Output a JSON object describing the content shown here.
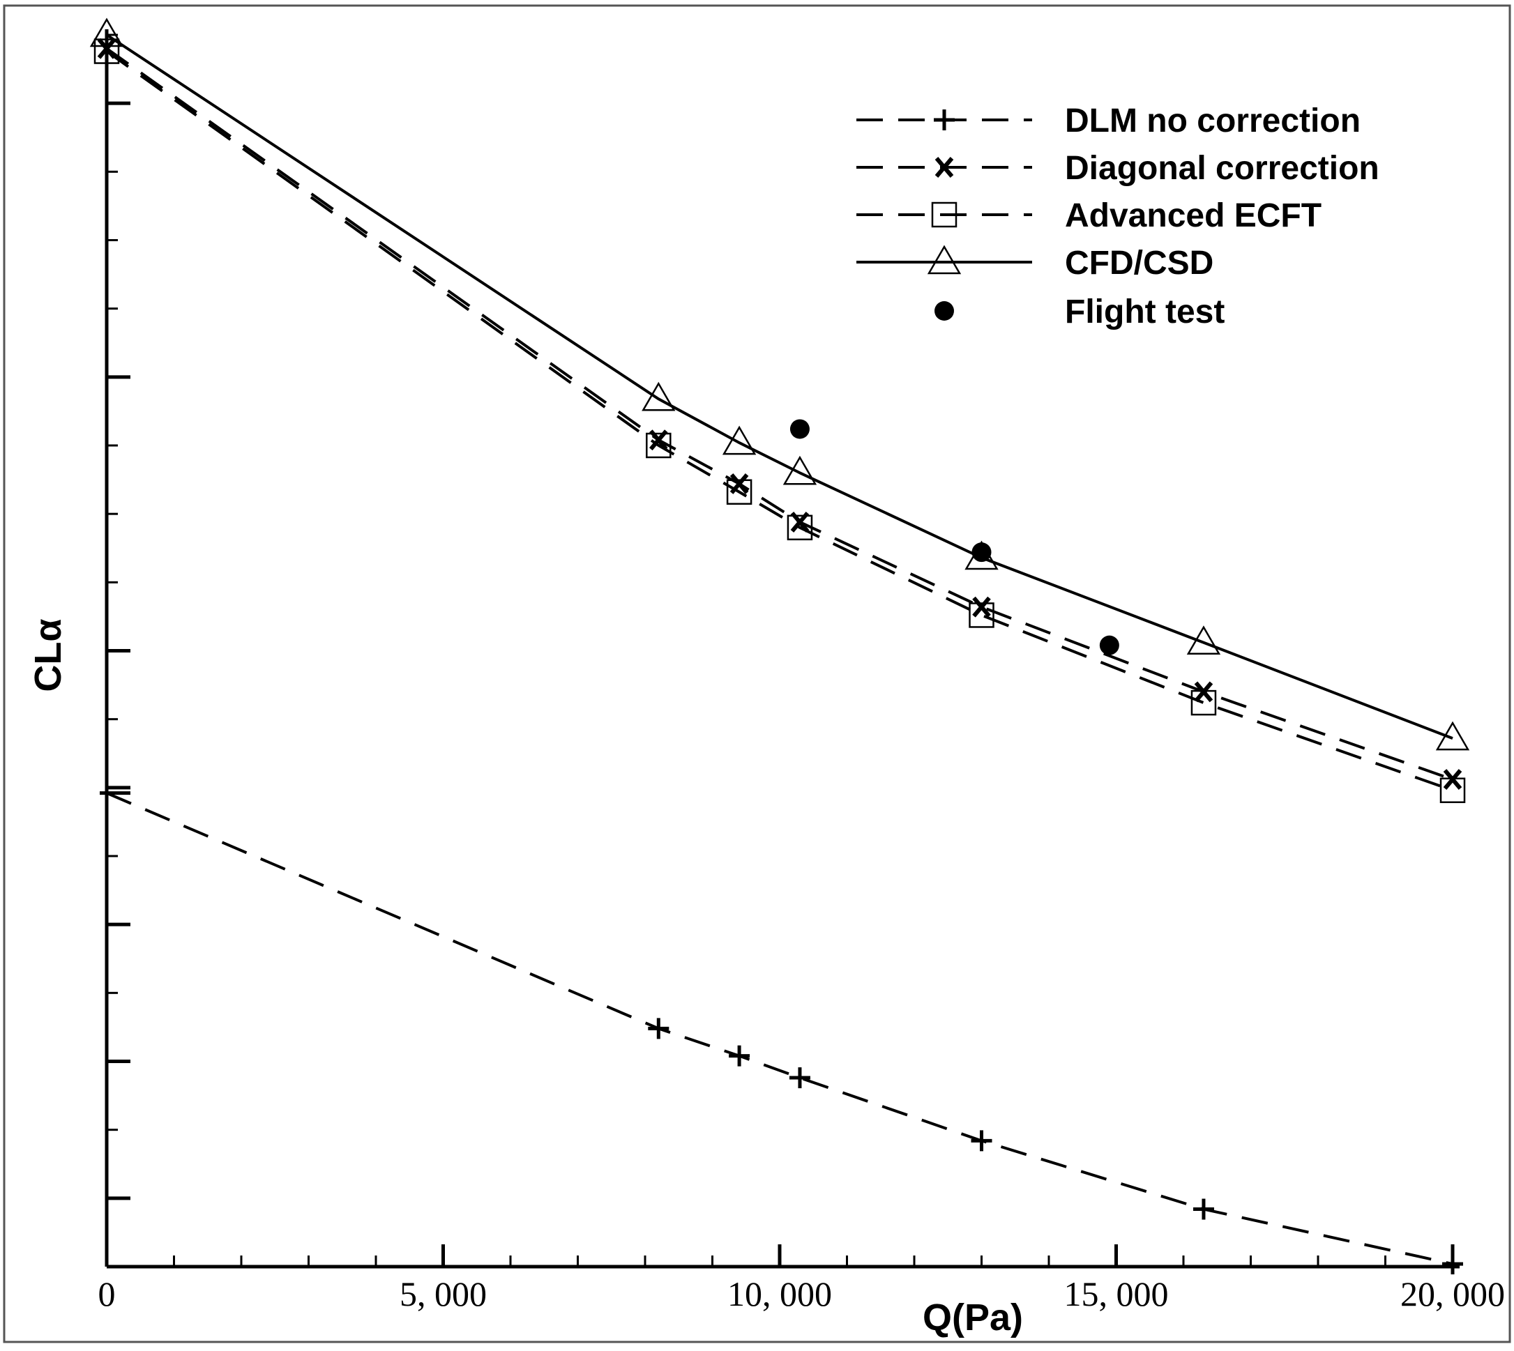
{
  "chart_data": {
    "type": "line",
    "title": "",
    "xlabel": "Q(Pa)",
    "ylabel": "CLα",
    "xlim": [
      0,
      20000
    ],
    "ylim": [
      0,
      22.5
    ],
    "grid": false,
    "legend_position": "top-right",
    "x_tick_labels": [
      {
        "value": 0,
        "label": "0"
      },
      {
        "value": 5000,
        "label": "5, 000"
      },
      {
        "value": 10000,
        "label": "10, 000"
      },
      {
        "value": 15000,
        "label": "15, 000"
      },
      {
        "value": 20000,
        "label": "20, 000"
      }
    ],
    "y_major_ticks": [
      0,
      1.25,
      3.75,
      6.25,
      8.75,
      11.25,
      16.25,
      21.25
    ],
    "y_tick_labels_shown": false,
    "series": [
      {
        "name": "DLM no correction",
        "style": "dashed",
        "marker": "plus",
        "x": [
          8200,
          9400,
          10300,
          13000,
          16300,
          20000
        ],
        "y": [
          4.35,
          3.85,
          3.45,
          2.3,
          1.05,
          0.05
        ],
        "line_start": {
          "x": 0,
          "y": 8.65
        }
      },
      {
        "name": "Diagonal correction",
        "style": "dashed",
        "marker": "x",
        "x": [
          0,
          8200,
          9400,
          10300,
          13000,
          16300,
          20000
        ],
        "y": [
          22.25,
          15.1,
          14.3,
          13.6,
          12.05,
          10.5,
          8.9
        ]
      },
      {
        "name": "Advanced ECFT",
        "style": "dashed",
        "marker": "square",
        "x": [
          0,
          8200,
          9400,
          10300,
          13000,
          16300,
          20000
        ],
        "y": [
          22.2,
          15.0,
          14.15,
          13.5,
          11.9,
          10.3,
          8.7
        ]
      },
      {
        "name": "CFD/CSD",
        "style": "solid",
        "marker": "triangle",
        "x": [
          0,
          8200,
          9400,
          10300,
          13000,
          16300,
          20000
        ],
        "y": [
          22.5,
          15.85,
          15.05,
          14.5,
          12.95,
          11.4,
          9.65
        ]
      },
      {
        "name": "Flight test",
        "style": "none",
        "marker": "circle",
        "x": [
          10300,
          13000,
          14900
        ],
        "y": [
          15.3,
          13.05,
          11.35
        ]
      }
    ]
  }
}
